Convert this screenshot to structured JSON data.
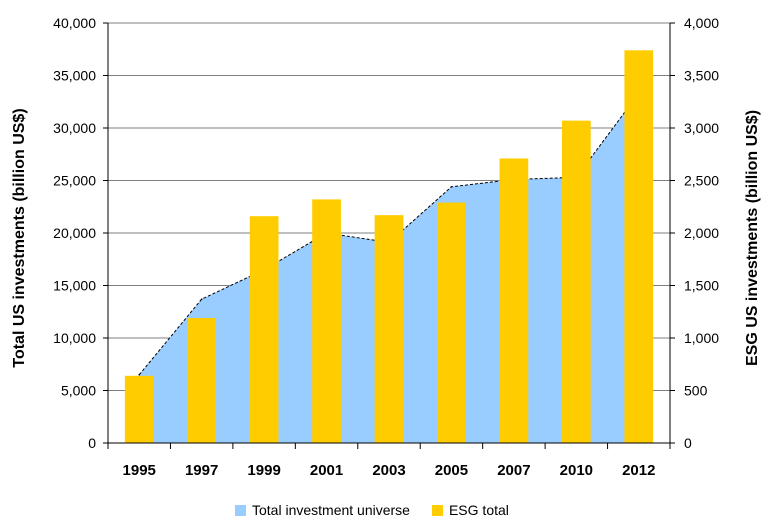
{
  "colors": {
    "area": "#99ccff",
    "bar": "#ffcc00",
    "grid": "#808080",
    "trend": "#000000"
  },
  "chart_data": {
    "type": "bar",
    "categories": [
      "1995",
      "1997",
      "1999",
      "2001",
      "2003",
      "2005",
      "2007",
      "2010",
      "2012"
    ],
    "series": [
      {
        "name": "Total investment universe",
        "type": "area",
        "axis": "left",
        "values": [
          6500,
          13700,
          16500,
          20000,
          19100,
          24400,
          25100,
          25300,
          33300
        ]
      },
      {
        "name": "ESG total",
        "type": "bar",
        "axis": "right",
        "values": [
          640,
          1190,
          2160,
          2320,
          2170,
          2290,
          2710,
          3070,
          3740
        ]
      }
    ],
    "ylabel": "Total US investments (billion US$)",
    "ylabel_right": "ESG US investments (billion US$)",
    "ylim": [
      0,
      40000
    ],
    "ylim_right": [
      0,
      4000
    ],
    "yticks": [
      "0",
      "5,000",
      "10,000",
      "15,000",
      "20,000",
      "25,000",
      "30,000",
      "35,000",
      "40,000"
    ],
    "yticks_right": [
      "0",
      "500",
      "1,000",
      "1,500",
      "2,000",
      "2,500",
      "3,000",
      "3,500",
      "4,000"
    ],
    "grid": true,
    "legend_position": "bottom"
  }
}
